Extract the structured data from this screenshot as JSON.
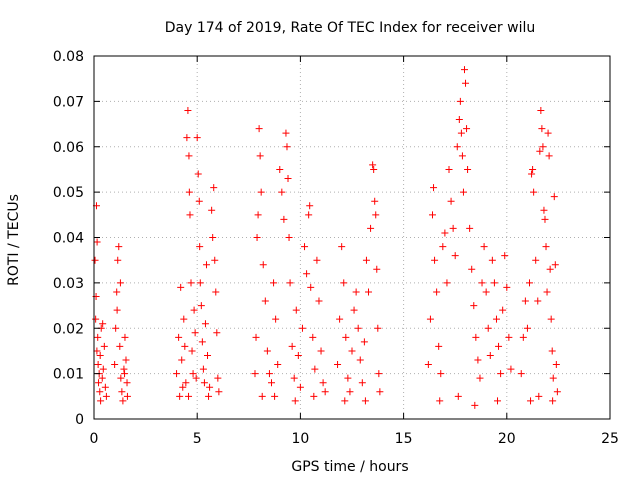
{
  "chart_data": {
    "type": "scatter",
    "title": "Day 174 of 2019, Rate Of TEC Index for receiver wilu",
    "xlabel": "GPS time / hours",
    "ylabel": "ROTI / TECUs",
    "xlim": [
      0,
      25
    ],
    "ylim": [
      0,
      0.08
    ],
    "xticks": [
      0,
      5,
      10,
      15,
      20,
      25
    ],
    "xtick_labels": [
      "0",
      "5",
      "10",
      "15",
      "20",
      "25"
    ],
    "yticks": [
      0,
      0.01,
      0.02,
      0.03,
      0.04,
      0.05,
      0.06,
      0.07,
      0.08
    ],
    "ytick_labels": [
      "0",
      "0.01",
      "0.02",
      "0.03",
      "0.04",
      "0.05",
      "0.06",
      "0.07",
      "0.08"
    ],
    "grid": true,
    "marker": "+",
    "color": "#ff0000",
    "series": [
      {
        "name": "ROTI",
        "points": [
          [
            0.05,
            0.035
          ],
          [
            0.1,
            0.027
          ],
          [
            0.12,
            0.047
          ],
          [
            0.15,
            0.039
          ],
          [
            0.18,
            0.018
          ],
          [
            0.2,
            0.012
          ],
          [
            0.22,
            0.008
          ],
          [
            0.25,
            0.01
          ],
          [
            0.28,
            0.006
          ],
          [
            0.3,
            0.014
          ],
          [
            0.35,
            0.02
          ],
          [
            0.4,
            0.009
          ],
          [
            0.45,
            0.011
          ],
          [
            0.5,
            0.016
          ],
          [
            0.55,
            0.007
          ],
          [
            0.6,
            0.005
          ],
          [
            0.08,
            0.022
          ],
          [
            0.14,
            0.015
          ],
          [
            0.32,
            0.004
          ],
          [
            0.42,
            0.021
          ],
          [
            1.0,
            0.012
          ],
          [
            1.05,
            0.02
          ],
          [
            1.1,
            0.028
          ],
          [
            1.15,
            0.035
          ],
          [
            1.2,
            0.038
          ],
          [
            1.25,
            0.016
          ],
          [
            1.3,
            0.009
          ],
          [
            1.35,
            0.006
          ],
          [
            1.4,
            0.004
          ],
          [
            1.45,
            0.011
          ],
          [
            1.5,
            0.018
          ],
          [
            1.55,
            0.013
          ],
          [
            1.6,
            0.008
          ],
          [
            1.62,
            0.005
          ],
          [
            1.12,
            0.024
          ],
          [
            1.28,
            0.03
          ],
          [
            1.48,
            0.01
          ],
          [
            4.0,
            0.01
          ],
          [
            4.1,
            0.018
          ],
          [
            4.2,
            0.029
          ],
          [
            4.25,
            0.013
          ],
          [
            4.3,
            0.007
          ],
          [
            4.35,
            0.022
          ],
          [
            4.4,
            0.016
          ],
          [
            4.45,
            0.008
          ],
          [
            4.5,
            0.062
          ],
          [
            4.55,
            0.068
          ],
          [
            4.6,
            0.058
          ],
          [
            4.62,
            0.05
          ],
          [
            4.65,
            0.045
          ],
          [
            4.7,
            0.03
          ],
          [
            4.75,
            0.015
          ],
          [
            4.8,
            0.01
          ],
          [
            4.85,
            0.024
          ],
          [
            4.9,
            0.019
          ],
          [
            4.95,
            0.009
          ],
          [
            5.0,
            0.062
          ],
          [
            5.05,
            0.054
          ],
          [
            5.1,
            0.048
          ],
          [
            5.12,
            0.038
          ],
          [
            5.15,
            0.03
          ],
          [
            5.2,
            0.025
          ],
          [
            5.25,
            0.017
          ],
          [
            5.3,
            0.011
          ],
          [
            5.35,
            0.008
          ],
          [
            5.4,
            0.021
          ],
          [
            5.45,
            0.034
          ],
          [
            5.5,
            0.014
          ],
          [
            5.6,
            0.007
          ],
          [
            5.7,
            0.046
          ],
          [
            5.75,
            0.04
          ],
          [
            5.8,
            0.051
          ],
          [
            5.85,
            0.035
          ],
          [
            5.9,
            0.028
          ],
          [
            5.95,
            0.019
          ],
          [
            6.0,
            0.009
          ],
          [
            6.05,
            0.006
          ],
          [
            4.15,
            0.005
          ],
          [
            4.58,
            0.005
          ],
          [
            5.55,
            0.005
          ],
          [
            7.8,
            0.01
          ],
          [
            7.85,
            0.018
          ],
          [
            7.9,
            0.04
          ],
          [
            7.95,
            0.045
          ],
          [
            8.0,
            0.064
          ],
          [
            8.05,
            0.058
          ],
          [
            8.1,
            0.05
          ],
          [
            8.2,
            0.034
          ],
          [
            8.3,
            0.026
          ],
          [
            8.4,
            0.015
          ],
          [
            8.5,
            0.01
          ],
          [
            8.6,
            0.008
          ],
          [
            8.7,
            0.03
          ],
          [
            8.8,
            0.022
          ],
          [
            8.9,
            0.012
          ],
          [
            9.0,
            0.055
          ],
          [
            9.1,
            0.05
          ],
          [
            9.2,
            0.044
          ],
          [
            9.3,
            0.063
          ],
          [
            9.35,
            0.06
          ],
          [
            9.4,
            0.053
          ],
          [
            9.45,
            0.04
          ],
          [
            9.5,
            0.03
          ],
          [
            9.6,
            0.016
          ],
          [
            9.7,
            0.009
          ],
          [
            9.8,
            0.024
          ],
          [
            9.9,
            0.014
          ],
          [
            10.0,
            0.007
          ],
          [
            10.1,
            0.02
          ],
          [
            10.2,
            0.038
          ],
          [
            10.3,
            0.032
          ],
          [
            10.4,
            0.045
          ],
          [
            10.45,
            0.047
          ],
          [
            10.5,
            0.029
          ],
          [
            10.6,
            0.018
          ],
          [
            10.7,
            0.011
          ],
          [
            10.8,
            0.035
          ],
          [
            10.9,
            0.026
          ],
          [
            11.0,
            0.015
          ],
          [
            11.1,
            0.008
          ],
          [
            11.2,
            0.006
          ],
          [
            8.15,
            0.005
          ],
          [
            8.75,
            0.005
          ],
          [
            9.75,
            0.004
          ],
          [
            10.65,
            0.005
          ],
          [
            11.8,
            0.012
          ],
          [
            11.9,
            0.022
          ],
          [
            12.0,
            0.038
          ],
          [
            12.1,
            0.03
          ],
          [
            12.2,
            0.018
          ],
          [
            12.3,
            0.009
          ],
          [
            12.4,
            0.006
          ],
          [
            12.5,
            0.015
          ],
          [
            12.6,
            0.024
          ],
          [
            12.7,
            0.028
          ],
          [
            12.8,
            0.02
          ],
          [
            12.9,
            0.013
          ],
          [
            13.0,
            0.008
          ],
          [
            13.1,
            0.017
          ],
          [
            13.2,
            0.035
          ],
          [
            13.3,
            0.028
          ],
          [
            13.4,
            0.042
          ],
          [
            13.5,
            0.056
          ],
          [
            13.55,
            0.055
          ],
          [
            13.6,
            0.048
          ],
          [
            13.65,
            0.045
          ],
          [
            13.7,
            0.033
          ],
          [
            13.75,
            0.02
          ],
          [
            13.8,
            0.01
          ],
          [
            13.85,
            0.006
          ],
          [
            12.15,
            0.004
          ],
          [
            13.15,
            0.004
          ],
          [
            16.2,
            0.012
          ],
          [
            16.3,
            0.022
          ],
          [
            16.4,
            0.045
          ],
          [
            16.45,
            0.051
          ],
          [
            16.5,
            0.035
          ],
          [
            16.6,
            0.028
          ],
          [
            16.7,
            0.016
          ],
          [
            16.8,
            0.01
          ],
          [
            16.9,
            0.038
          ],
          [
            17.0,
            0.041
          ],
          [
            17.1,
            0.03
          ],
          [
            17.2,
            0.055
          ],
          [
            17.3,
            0.048
          ],
          [
            17.4,
            0.042
          ],
          [
            17.5,
            0.036
          ],
          [
            17.6,
            0.06
          ],
          [
            17.7,
            0.066
          ],
          [
            17.75,
            0.07
          ],
          [
            17.8,
            0.063
          ],
          [
            17.85,
            0.058
          ],
          [
            17.9,
            0.05
          ],
          [
            17.95,
            0.077
          ],
          [
            18.0,
            0.074
          ],
          [
            18.05,
            0.064
          ],
          [
            18.1,
            0.055
          ],
          [
            18.2,
            0.042
          ],
          [
            18.3,
            0.033
          ],
          [
            18.4,
            0.025
          ],
          [
            18.5,
            0.018
          ],
          [
            18.6,
            0.013
          ],
          [
            18.7,
            0.009
          ],
          [
            18.8,
            0.03
          ],
          [
            18.9,
            0.038
          ],
          [
            19.0,
            0.028
          ],
          [
            19.1,
            0.02
          ],
          [
            19.2,
            0.014
          ],
          [
            19.3,
            0.035
          ],
          [
            19.4,
            0.03
          ],
          [
            19.5,
            0.022
          ],
          [
            19.6,
            0.016
          ],
          [
            19.7,
            0.01
          ],
          [
            19.8,
            0.024
          ],
          [
            19.9,
            0.036
          ],
          [
            20.0,
            0.029
          ],
          [
            20.1,
            0.018
          ],
          [
            20.2,
            0.011
          ],
          [
            16.75,
            0.004
          ],
          [
            17.65,
            0.005
          ],
          [
            18.45,
            0.003
          ],
          [
            19.55,
            0.004
          ],
          [
            20.7,
            0.01
          ],
          [
            20.8,
            0.018
          ],
          [
            20.9,
            0.026
          ],
          [
            21.0,
            0.02
          ],
          [
            21.1,
            0.03
          ],
          [
            21.2,
            0.054
          ],
          [
            21.25,
            0.055
          ],
          [
            21.3,
            0.05
          ],
          [
            21.4,
            0.035
          ],
          [
            21.5,
            0.026
          ],
          [
            21.6,
            0.059
          ],
          [
            21.65,
            0.068
          ],
          [
            21.7,
            0.064
          ],
          [
            21.75,
            0.06
          ],
          [
            21.8,
            0.046
          ],
          [
            21.85,
            0.044
          ],
          [
            21.9,
            0.038
          ],
          [
            21.95,
            0.028
          ],
          [
            22.0,
            0.063
          ],
          [
            22.05,
            0.058
          ],
          [
            22.1,
            0.033
          ],
          [
            22.15,
            0.022
          ],
          [
            22.2,
            0.015
          ],
          [
            22.25,
            0.009
          ],
          [
            22.3,
            0.049
          ],
          [
            22.35,
            0.034
          ],
          [
            22.4,
            0.012
          ],
          [
            22.45,
            0.006
          ],
          [
            21.15,
            0.004
          ],
          [
            21.55,
            0.005
          ],
          [
            22.22,
            0.004
          ]
        ]
      }
    ]
  }
}
